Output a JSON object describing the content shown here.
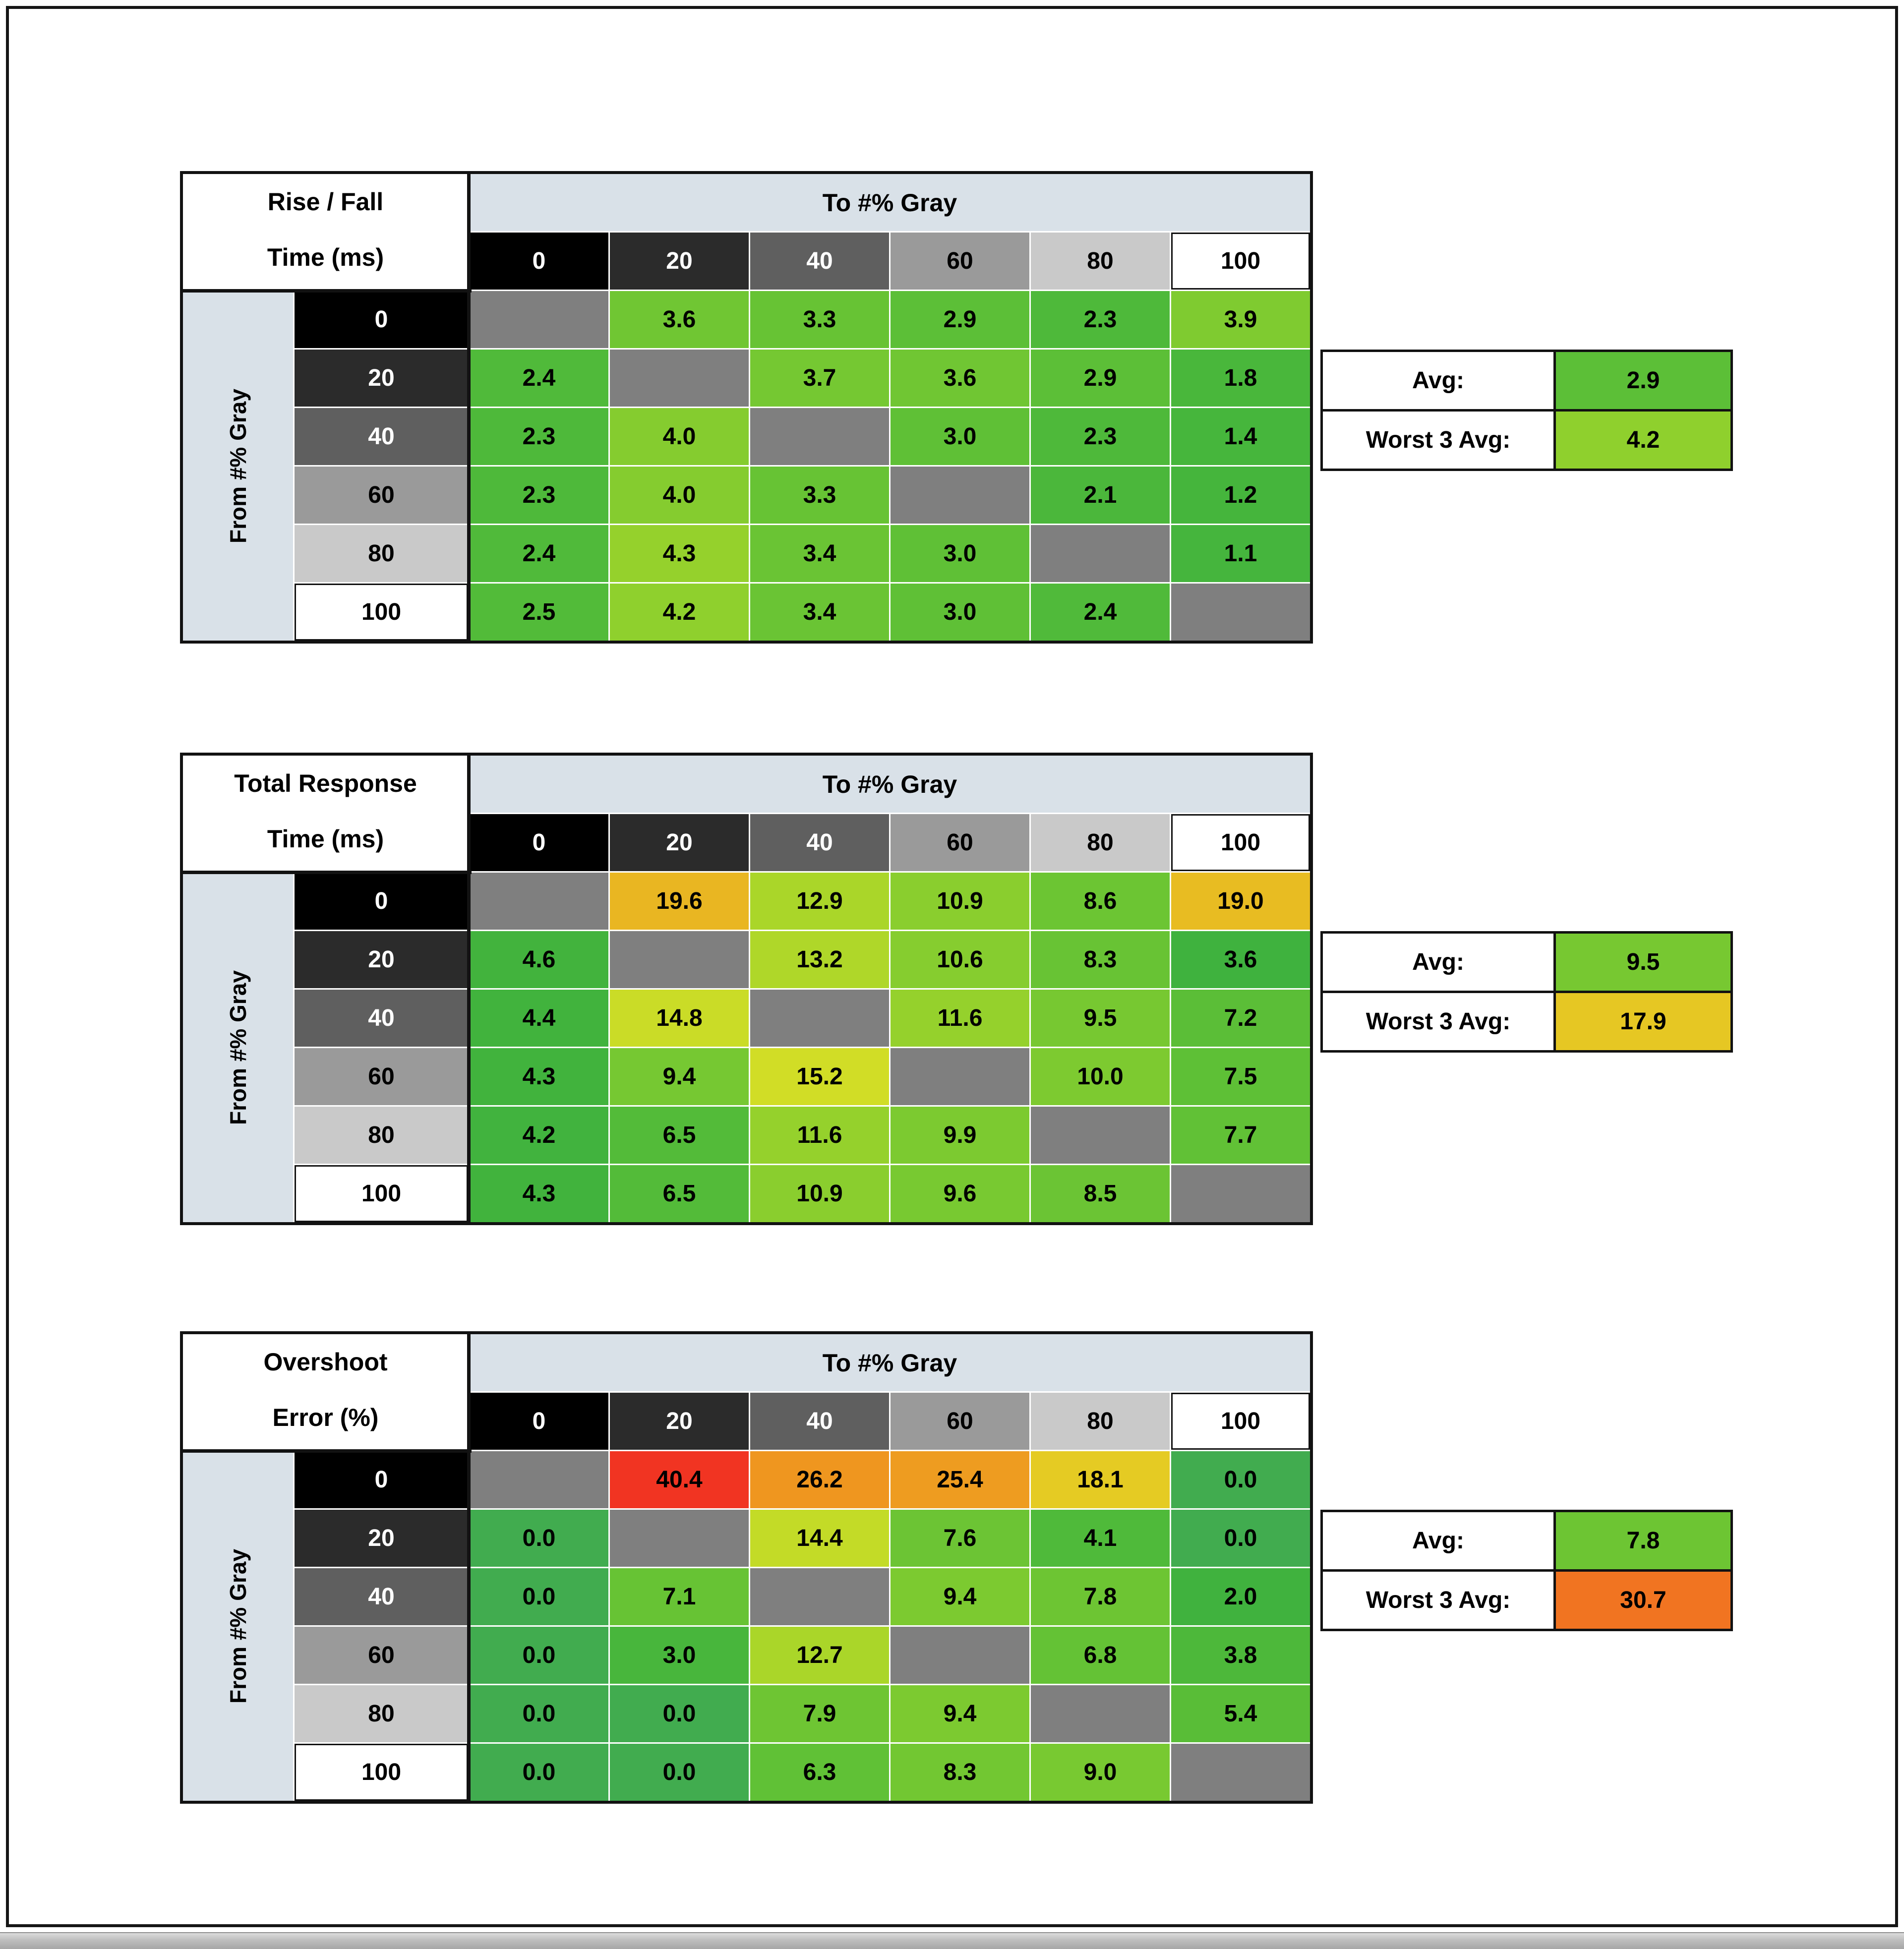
{
  "window": {
    "bg": "#ffffff",
    "border_color": "#161616"
  },
  "labels": {
    "to_axis": "To #% Gray",
    "from_axis": "From #% Gray",
    "avg": "Avg:",
    "worst3": "Worst 3 Avg:"
  },
  "gray_levels": [
    "0",
    "20",
    "40",
    "60",
    "80",
    "100"
  ],
  "chart_data": [
    {
      "type": "heatmap",
      "id": "rise-fall-time",
      "title_lines": [
        "Rise / Fall",
        "Time (ms)"
      ],
      "x_label": "To #% Gray",
      "y_label": "From #% Gray",
      "x": [
        0,
        20,
        40,
        60,
        80,
        100
      ],
      "y": [
        0,
        20,
        40,
        60,
        80,
        100
      ],
      "values": [
        [
          null,
          3.6,
          3.3,
          2.9,
          2.3,
          3.9
        ],
        [
          2.4,
          null,
          3.7,
          3.6,
          2.9,
          1.8
        ],
        [
          2.3,
          4.0,
          null,
          3.0,
          2.3,
          1.4
        ],
        [
          2.3,
          4.0,
          3.3,
          null,
          2.1,
          1.2
        ],
        [
          2.4,
          4.3,
          3.4,
          3.0,
          null,
          1.1
        ],
        [
          2.5,
          4.2,
          3.4,
          3.0,
          2.4,
          null
        ]
      ],
      "avg": 2.9,
      "worst_3_avg": 4.2
    },
    {
      "type": "heatmap",
      "id": "total-response-time",
      "title_lines": [
        "Total Response",
        "Time (ms)"
      ],
      "x_label": "To #% Gray",
      "y_label": "From #% Gray",
      "x": [
        0,
        20,
        40,
        60,
        80,
        100
      ],
      "y": [
        0,
        20,
        40,
        60,
        80,
        100
      ],
      "values": [
        [
          null,
          19.6,
          12.9,
          10.9,
          8.6,
          19.0
        ],
        [
          4.6,
          null,
          13.2,
          10.6,
          8.3,
          3.6
        ],
        [
          4.4,
          14.8,
          null,
          11.6,
          9.5,
          7.2
        ],
        [
          4.3,
          9.4,
          15.2,
          null,
          10.0,
          7.5
        ],
        [
          4.2,
          6.5,
          11.6,
          9.9,
          null,
          7.7
        ],
        [
          4.3,
          6.5,
          10.9,
          9.6,
          8.5,
          null
        ]
      ],
      "avg": 9.5,
      "worst_3_avg": 17.9
    },
    {
      "type": "heatmap",
      "id": "overshoot-error",
      "title_lines": [
        "Overshoot",
        "Error (%)"
      ],
      "x_label": "To #% Gray",
      "y_label": "From #% Gray",
      "x": [
        0,
        20,
        40,
        60,
        80,
        100
      ],
      "y": [
        0,
        20,
        40,
        60,
        80,
        100
      ],
      "values": [
        [
          null,
          40.4,
          26.2,
          25.4,
          18.1,
          0.0
        ],
        [
          0.0,
          null,
          14.4,
          7.6,
          4.1,
          0.0
        ],
        [
          0.0,
          7.1,
          null,
          9.4,
          7.8,
          2.0
        ],
        [
          0.0,
          3.0,
          12.7,
          null,
          6.8,
          3.8
        ],
        [
          0.0,
          0.0,
          7.9,
          9.4,
          null,
          5.4
        ],
        [
          0.0,
          0.0,
          6.3,
          8.3,
          9.0,
          null
        ]
      ],
      "avg": 7.8,
      "worst_3_avg": 30.7
    }
  ],
  "style": {
    "ramp_bg": [
      "#000000",
      "#2b2b2b",
      "#5f5f5f",
      "#9a9a9a",
      "#c9c9c9",
      "#ffffff"
    ],
    "ramp_text": [
      "#ffffff",
      "#ffffff",
      "#ffffff",
      "#000000",
      "#000000",
      "#000000"
    ],
    "band_bg": "#d9e1e8",
    "diag_bg": "#7f7f7f",
    "border_black": "#121212",
    "hue_stops": [
      [
        [
          0,
          120
        ],
        [
          2.2,
          112
        ],
        [
          3.6,
          95
        ],
        [
          4.5,
          78
        ],
        [
          6,
          60
        ]
      ],
      [
        [
          0,
          125
        ],
        [
          4.5,
          118
        ],
        [
          6.5,
          108
        ],
        [
          8.5,
          97
        ],
        [
          10,
          90
        ],
        [
          13,
          75
        ],
        [
          15,
          65
        ],
        [
          18,
          50
        ],
        [
          21,
          40
        ],
        [
          25,
          30
        ]
      ],
      [
        [
          0,
          128
        ],
        [
          3,
          114
        ],
        [
          7,
          99
        ],
        [
          9.5,
          90
        ],
        [
          13,
          74
        ],
        [
          14.4,
          68
        ],
        [
          18.1,
          52
        ],
        [
          25.4,
          36
        ],
        [
          30.7,
          24
        ],
        [
          40.4,
          5
        ]
      ]
    ]
  }
}
